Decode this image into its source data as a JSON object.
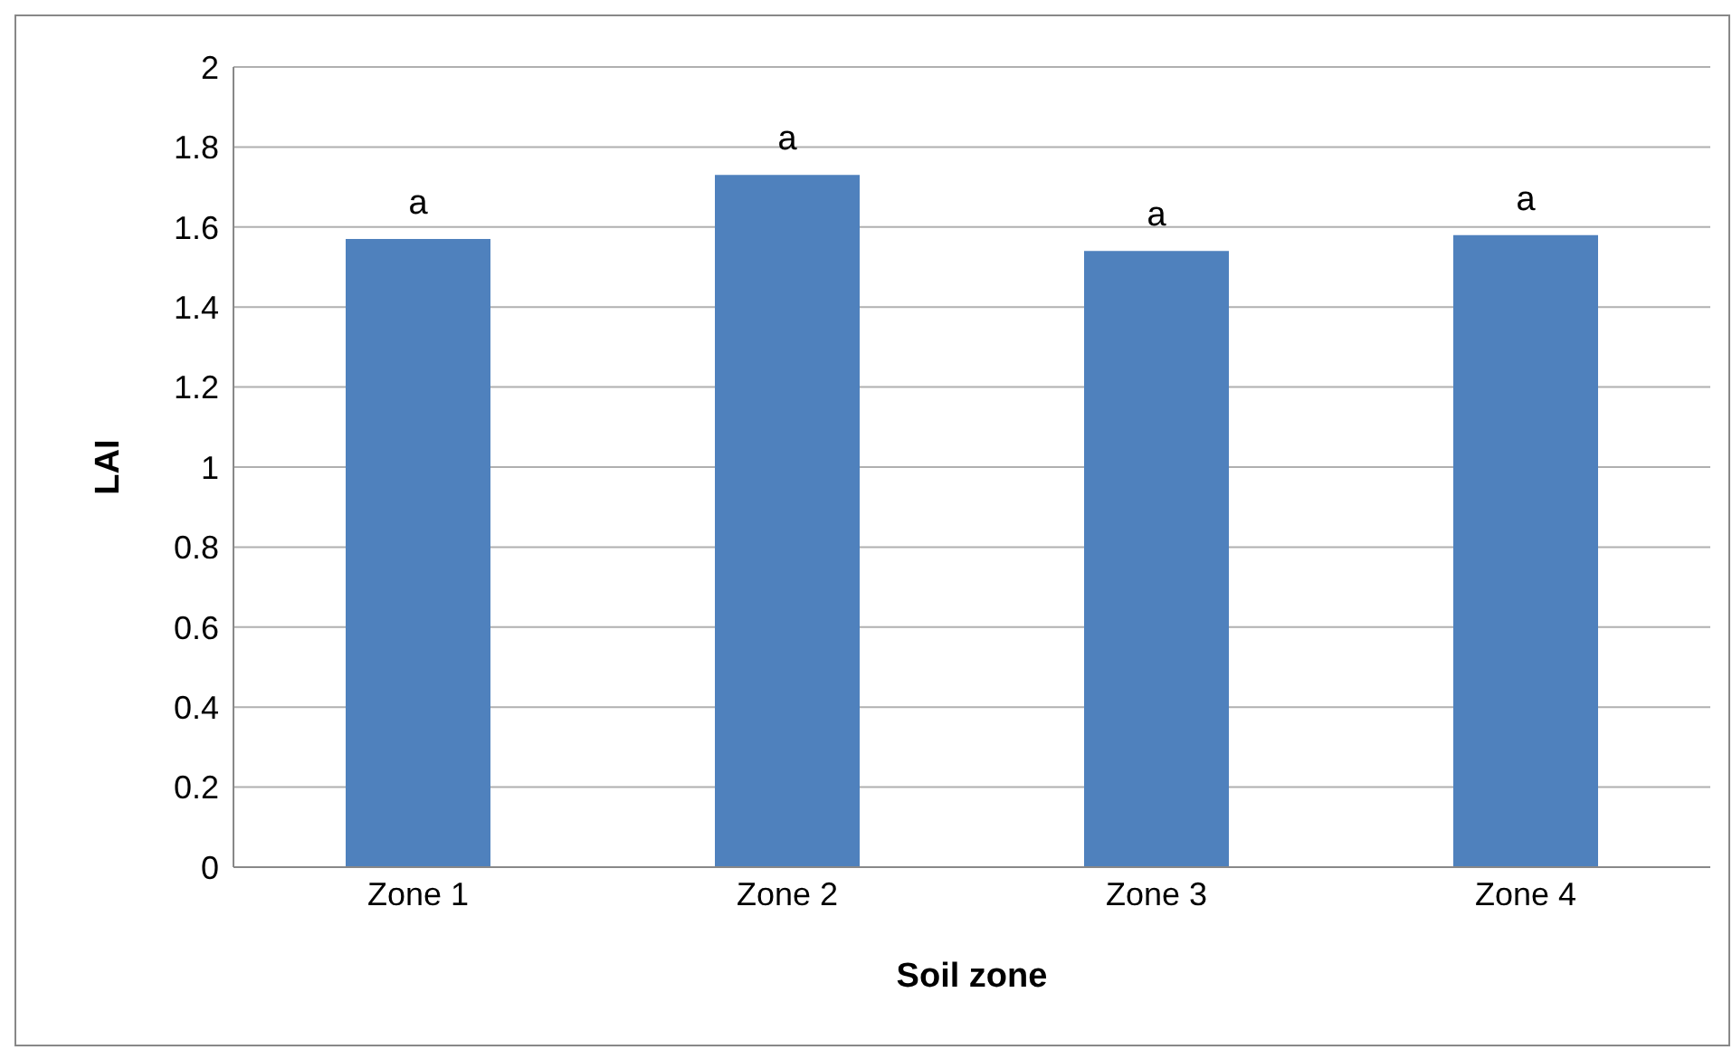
{
  "chart_data": {
    "type": "bar",
    "xlabel": "Soil zone",
    "ylabel": "LAI",
    "categories": [
      "Zone 1",
      "Zone 2",
      "Zone 3",
      "Zone 4"
    ],
    "values": [
      1.57,
      1.73,
      1.54,
      1.58
    ],
    "color": "#4f81bd",
    "ylim": [
      0,
      2
    ],
    "yticks": [
      0,
      0.2,
      0.4,
      0.6,
      0.8,
      1,
      1.2,
      1.4,
      1.6,
      1.8,
      2
    ],
    "grid": "y",
    "annotations": [
      {
        "text": "a",
        "x": "Zone 1",
        "y": 1.57
      },
      {
        "text": "a",
        "x": "Zone 2",
        "y": 1.73
      },
      {
        "text": "a",
        "x": "Zone 3",
        "y": 1.54
      },
      {
        "text": "a",
        "x": "Zone 4",
        "y": 1.58
      }
    ]
  }
}
